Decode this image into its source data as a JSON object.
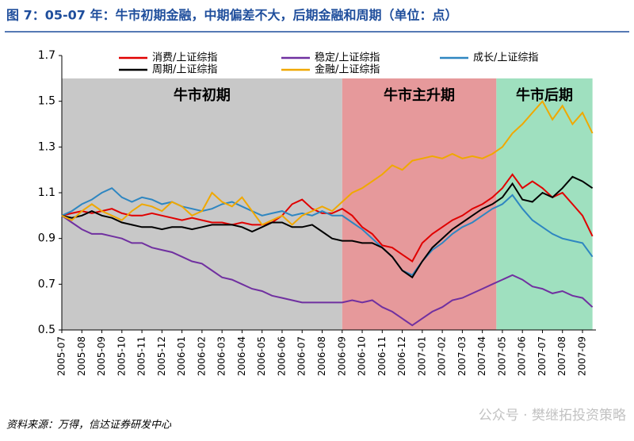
{
  "chart_data": {
    "type": "line",
    "title": "图 7：05-07 年：牛市初期金融，中期偏差不大，后期金融和周期（单位：点）",
    "source": "资料来源：万得，信达证券研发中心",
    "watermark": "公众号 · 樊继拓投资策略",
    "categories": [
      "2005-07",
      null,
      "2005-08",
      null,
      "2005-09",
      null,
      "2005-10",
      null,
      "2005-11",
      null,
      "2005-12",
      null,
      "2006-01",
      null,
      "2006-02",
      null,
      "2006-03",
      null,
      "2006-04",
      null,
      "2006-05",
      null,
      "2006-06",
      null,
      "2006-07",
      null,
      "2006-08",
      null,
      "2006-09",
      null,
      "2006-10",
      null,
      "2006-11",
      null,
      "2006-12",
      null,
      "2007-01",
      null,
      "2007-02",
      null,
      "2007-03",
      null,
      "2007-04",
      null,
      "2007-05",
      null,
      "2007-06",
      null,
      "2007-07",
      null,
      "2007-08",
      null,
      "2007-09",
      null
    ],
    "ylim": [
      0.5,
      1.7
    ],
    "yticks": [
      0.5,
      0.7,
      0.9,
      1.1,
      1.3,
      1.5,
      1.7
    ],
    "legend": "top",
    "regions": [
      {
        "label": "牛市初期",
        "start": 0,
        "end": 28,
        "top": 1.6,
        "color": "#c8c8c8"
      },
      {
        "label": "牛市主升期",
        "start": 28,
        "end": 43.4,
        "top": 1.6,
        "color": "#e6999b"
      },
      {
        "label": "牛市后期",
        "start": 43.4,
        "end": 53,
        "top": 1.6,
        "color": "#9fe0bf"
      }
    ],
    "series": [
      {
        "name": "消费/上证综指",
        "color": "#e00000",
        "values": [
          1.0,
          1.01,
          1.02,
          1.01,
          1.02,
          1.03,
          1.01,
          1.0,
          1.0,
          1.01,
          1.0,
          0.99,
          0.98,
          0.99,
          0.98,
          0.97,
          0.97,
          0.96,
          0.97,
          0.96,
          0.96,
          0.97,
          1.0,
          1.05,
          1.07,
          1.03,
          1.01,
          1.01,
          1.03,
          1.0,
          0.95,
          0.92,
          0.87,
          0.86,
          0.83,
          0.8,
          0.88,
          0.92,
          0.95,
          0.98,
          1.0,
          1.03,
          1.05,
          1.08,
          1.12,
          1.18,
          1.12,
          1.15,
          1.12,
          1.08,
          1.1,
          1.05,
          1.0,
          0.91
        ]
      },
      {
        "name": "稳定/上证综指",
        "color": "#7030a0",
        "values": [
          1.0,
          0.97,
          0.94,
          0.92,
          0.92,
          0.91,
          0.9,
          0.88,
          0.88,
          0.86,
          0.85,
          0.84,
          0.82,
          0.8,
          0.79,
          0.76,
          0.73,
          0.72,
          0.7,
          0.68,
          0.67,
          0.65,
          0.64,
          0.63,
          0.62,
          0.62,
          0.62,
          0.62,
          0.62,
          0.63,
          0.62,
          0.63,
          0.6,
          0.58,
          0.55,
          0.52,
          0.55,
          0.58,
          0.6,
          0.63,
          0.64,
          0.66,
          0.68,
          0.7,
          0.72,
          0.74,
          0.72,
          0.69,
          0.68,
          0.66,
          0.67,
          0.65,
          0.64,
          0.6
        ]
      },
      {
        "name": "成长/上证综指",
        "color": "#2e86c1",
        "values": [
          1.0,
          1.02,
          1.05,
          1.07,
          1.1,
          1.12,
          1.08,
          1.06,
          1.08,
          1.07,
          1.05,
          1.06,
          1.04,
          1.03,
          1.02,
          1.03,
          1.05,
          1.06,
          1.04,
          1.02,
          1.0,
          1.01,
          1.02,
          1.0,
          1.01,
          1.0,
          1.02,
          1.0,
          1.0,
          0.97,
          0.94,
          0.9,
          0.86,
          0.82,
          0.76,
          0.74,
          0.8,
          0.85,
          0.88,
          0.92,
          0.95,
          0.97,
          1.0,
          1.03,
          1.05,
          1.09,
          1.03,
          0.98,
          0.95,
          0.92,
          0.9,
          0.89,
          0.88,
          0.82
        ]
      },
      {
        "name": "周期/上证综指",
        "color": "#000000",
        "values": [
          1.0,
          0.99,
          1.0,
          1.02,
          1.0,
          0.99,
          0.97,
          0.96,
          0.95,
          0.95,
          0.94,
          0.95,
          0.95,
          0.94,
          0.95,
          0.96,
          0.96,
          0.96,
          0.95,
          0.93,
          0.95,
          0.97,
          0.97,
          0.95,
          0.95,
          0.96,
          0.93,
          0.9,
          0.89,
          0.89,
          0.88,
          0.88,
          0.86,
          0.82,
          0.76,
          0.73,
          0.8,
          0.86,
          0.9,
          0.94,
          0.97,
          1.0,
          1.03,
          1.05,
          1.08,
          1.14,
          1.07,
          1.06,
          1.1,
          1.08,
          1.12,
          1.17,
          1.15,
          1.12
        ]
      },
      {
        "name": "金融/上证综指",
        "color": "#f0a800",
        "values": [
          1.0,
          0.98,
          1.02,
          1.05,
          1.02,
          1.0,
          0.98,
          1.02,
          1.05,
          1.04,
          1.02,
          1.06,
          1.04,
          1.0,
          1.02,
          1.1,
          1.06,
          1.04,
          1.08,
          1.02,
          0.96,
          0.98,
          1.0,
          0.96,
          1.0,
          1.02,
          1.04,
          1.02,
          1.06,
          1.1,
          1.12,
          1.15,
          1.18,
          1.22,
          1.2,
          1.24,
          1.25,
          1.26,
          1.25,
          1.27,
          1.25,
          1.26,
          1.25,
          1.27,
          1.3,
          1.36,
          1.4,
          1.45,
          1.5,
          1.42,
          1.48,
          1.4,
          1.45,
          1.36
        ]
      }
    ]
  }
}
